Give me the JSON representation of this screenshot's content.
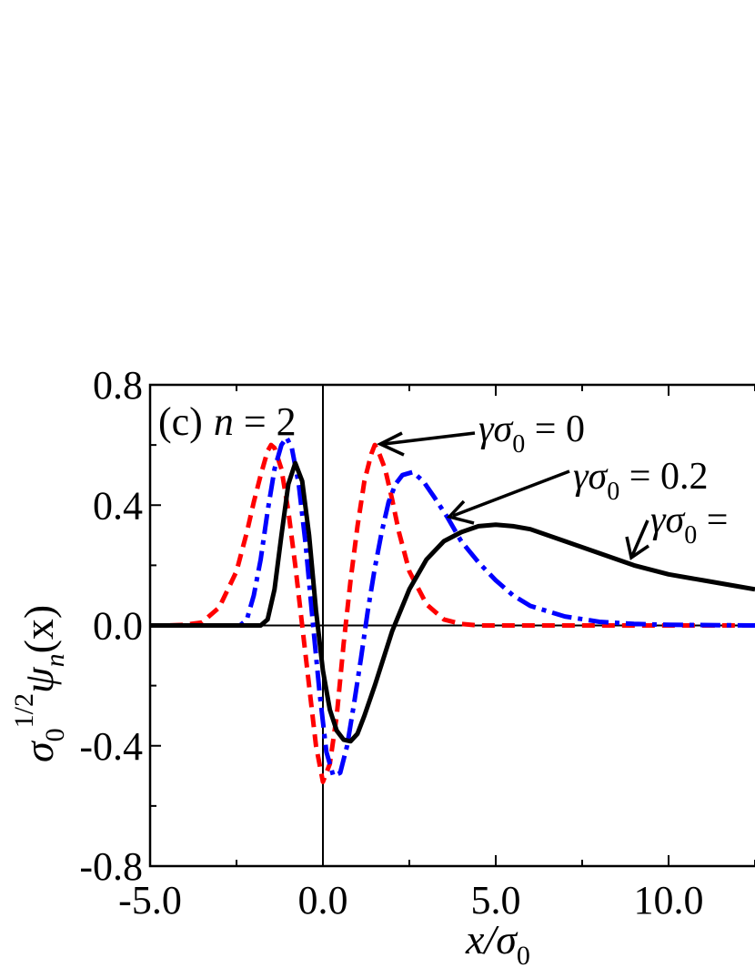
{
  "chart_data": {
    "type": "line",
    "panel_label": "(c)",
    "panel_var": "n",
    "panel_eq": " = 2",
    "x_axis": {
      "label_var": "x",
      "label_sep": "/",
      "label_sigma": "σ",
      "label_sub": "0",
      "range": [
        -5.0,
        12.5
      ],
      "ticks": [
        -5.0,
        0.0,
        5.0,
        10.0
      ],
      "tick_labels": [
        "-5.0",
        "0.0",
        "5.0",
        "10.0"
      ]
    },
    "y_axis": {
      "label_sigma": "σ",
      "label_sub": "0",
      "label_sup": "1/2",
      "label_psi": "ψ",
      "label_psi_sub": "n",
      "label_arg": "(x)",
      "range": [
        -0.8,
        0.8
      ],
      "ticks": [
        -0.8,
        -0.4,
        0.0,
        0.4,
        0.8
      ],
      "tick_labels": [
        "-0.8",
        "-0.4",
        "0.0",
        "0.4",
        "0.8"
      ]
    },
    "grid": false,
    "reference_lines": {
      "x": 0,
      "y": 0
    },
    "series": [
      {
        "label": "γσ0 = 0",
        "style": "dashed",
        "color": "#ff0000",
        "x": [
          -5.0,
          -4.5,
          -4.0,
          -3.5,
          -3.0,
          -2.5,
          -2.2,
          -2.0,
          -1.8,
          -1.6,
          -1.5,
          -1.4,
          -1.2,
          -1.0,
          -0.8,
          -0.6,
          -0.4,
          -0.2,
          0.0,
          0.2,
          0.4,
          0.6,
          0.8,
          1.0,
          1.2,
          1.4,
          1.5,
          1.6,
          1.8,
          2.0,
          2.2,
          2.5,
          3.0,
          3.5,
          4.0,
          4.5,
          5.0,
          6.0,
          8.0,
          10.0,
          12.5
        ],
        "y": [
          0.0,
          0.0,
          0.002,
          0.01,
          0.06,
          0.18,
          0.31,
          0.41,
          0.5,
          0.58,
          0.6,
          0.59,
          0.52,
          0.38,
          0.2,
          0.0,
          -0.2,
          -0.4,
          -0.52,
          -0.46,
          -0.3,
          -0.06,
          0.15,
          0.33,
          0.48,
          0.57,
          0.6,
          0.58,
          0.52,
          0.42,
          0.31,
          0.18,
          0.07,
          0.02,
          0.005,
          0.0,
          0.0,
          0.0,
          0.0,
          0.0,
          0.0
        ]
      },
      {
        "label": "γσ0 = 0.2",
        "style": "dash-dot",
        "color": "#0000ff",
        "x": [
          -5.0,
          -3.0,
          -2.4,
          -2.2,
          -2.0,
          -1.8,
          -1.6,
          -1.4,
          -1.2,
          -1.05,
          -0.9,
          -0.7,
          -0.5,
          -0.3,
          -0.1,
          0.1,
          0.3,
          0.5,
          0.7,
          0.9,
          1.1,
          1.3,
          1.5,
          1.7,
          1.9,
          2.1,
          2.3,
          2.6,
          2.9,
          3.2,
          3.6,
          4.0,
          4.5,
          5.0,
          5.5,
          6.0,
          7.0,
          8.0,
          9.0,
          10.0,
          12.5
        ],
        "y": [
          0.0,
          0.0,
          0.0,
          0.02,
          0.1,
          0.22,
          0.38,
          0.52,
          0.6,
          0.625,
          0.59,
          0.47,
          0.27,
          0.02,
          -0.22,
          -0.42,
          -0.5,
          -0.49,
          -0.4,
          -0.26,
          -0.11,
          0.05,
          0.19,
          0.31,
          0.41,
          0.47,
          0.5,
          0.51,
          0.48,
          0.43,
          0.36,
          0.28,
          0.21,
          0.15,
          0.1,
          0.065,
          0.03,
          0.012,
          0.005,
          0.002,
          0.0
        ]
      },
      {
        "label": "γσ0 = ",
        "style": "solid",
        "color": "#000000",
        "x": [
          -5.0,
          -2.0,
          -1.8,
          -1.6,
          -1.4,
          -1.2,
          -1.0,
          -0.8,
          -0.6,
          -0.4,
          -0.2,
          0.0,
          0.2,
          0.4,
          0.6,
          0.8,
          1.0,
          1.2,
          1.5,
          2.0,
          2.5,
          3.0,
          3.5,
          4.0,
          4.5,
          5.0,
          5.5,
          6.0,
          7.0,
          8.0,
          9.0,
          10.0,
          11.0,
          12.0,
          12.5
        ],
        "y": [
          0.0,
          0.0,
          0.0,
          0.02,
          0.12,
          0.3,
          0.47,
          0.54,
          0.48,
          0.3,
          0.05,
          -0.15,
          -0.28,
          -0.35,
          -0.38,
          -0.385,
          -0.36,
          -0.3,
          -0.2,
          -0.02,
          0.12,
          0.22,
          0.28,
          0.31,
          0.33,
          0.335,
          0.33,
          0.32,
          0.28,
          0.24,
          0.2,
          0.17,
          0.15,
          0.13,
          0.12
        ]
      }
    ],
    "annotations": [
      {
        "pre": "γσ",
        "sub": "0",
        "post": " = 0"
      },
      {
        "pre": "γσ",
        "sub": "0",
        "post": " = 0.2"
      },
      {
        "pre": "γσ",
        "sub": "0",
        "post": " = "
      }
    ]
  }
}
